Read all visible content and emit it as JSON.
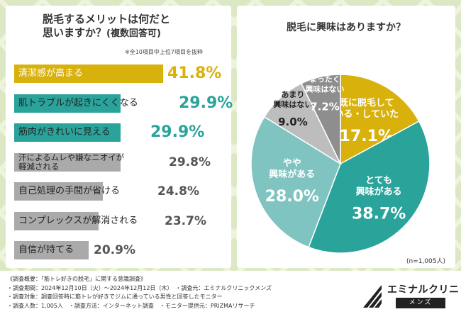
{
  "left": {
    "title_line1": "脱毛するメリットは何だと",
    "title_line2": "思いますか？",
    "title_sub": "(複数回答可)",
    "note": "※全10項目中上位7項目を抜粋"
  },
  "right": {
    "title": "脱毛に興味はありますか？",
    "sample": "(n=1,005人)"
  },
  "chart_data": [
    {
      "type": "bar",
      "orientation": "horizontal",
      "title": "脱毛するメリットは何だと思いますか？(複数回答可)",
      "categories": [
        "清潔感が高まる",
        "肌トラブルが起きにくくなる",
        "筋肉がきれいに見える",
        "汗によるムレや嫌なニオイが軽減される",
        "自己処理の手間が省ける",
        "コンプレックスが解消される",
        "自信が持てる"
      ],
      "values": [
        41.8,
        29.9,
        29.9,
        29.8,
        24.8,
        23.7,
        20.9
      ],
      "label_lines": [
        [
          "清潔感が高まる"
        ],
        [
          "肌トラブルが起きにくくなる"
        ],
        [
          "筋肉がきれいに見える"
        ],
        [
          "汗によるムレや嫌なニオイが",
          "軽減される"
        ],
        [
          "自己処理の手間が省ける"
        ],
        [
          "コンプレックスが解消される"
        ],
        [
          "自信が持てる"
        ]
      ],
      "colors": [
        "#d9b10c",
        "#2aa39b",
        "#2aa39b",
        "#aaaaaa",
        "#aaaaaa",
        "#aaaaaa",
        "#aaaaaa"
      ]
    },
    {
      "type": "pie",
      "style": "donut",
      "title": "脱毛に興味はありますか？",
      "slices": [
        {
          "label": "既に脱毛している・していた",
          "value": 17.1,
          "color": "#d9b10c",
          "lines": [
            "既に脱毛して",
            "いる・していた"
          ]
        },
        {
          "label": "とても興味がある",
          "value": 38.7,
          "color": "#2aa39b",
          "lines": [
            "とても",
            "興味がある"
          ]
        },
        {
          "label": "やや興味がある",
          "value": 28.0,
          "color": "#7fc4c0",
          "lines": [
            "やや",
            "興味がある"
          ]
        },
        {
          "label": "あまり興味はない",
          "value": 9.0,
          "color": "#bdbdbd",
          "lines": [
            "あまり",
            "興味はない"
          ]
        },
        {
          "label": "まったく興味はない",
          "value": 7.2,
          "color": "#8e8e8e",
          "lines": [
            "まったく",
            "興味はない"
          ]
        }
      ],
      "n": "1,005人"
    }
  ],
  "footer": {
    "lines": [
      "《調査概要：「筋トレ好きの脱毛」に関する意識調査》",
      "・調査期間：2024年12月10日（火）～2024年12月12日（木）　・調査元：エミナルクリニックメンズ",
      "・調査対象：調査回答時に筋トレが好きでジムに通っている男性と回答したモニター",
      "・調査人数：1,005人　・調査方法：インターネット調査　・モニター提供元：PRIZMAリサーチ"
    ],
    "logo_name": "エミナルクリニック",
    "logo_sub": "メンズ"
  }
}
